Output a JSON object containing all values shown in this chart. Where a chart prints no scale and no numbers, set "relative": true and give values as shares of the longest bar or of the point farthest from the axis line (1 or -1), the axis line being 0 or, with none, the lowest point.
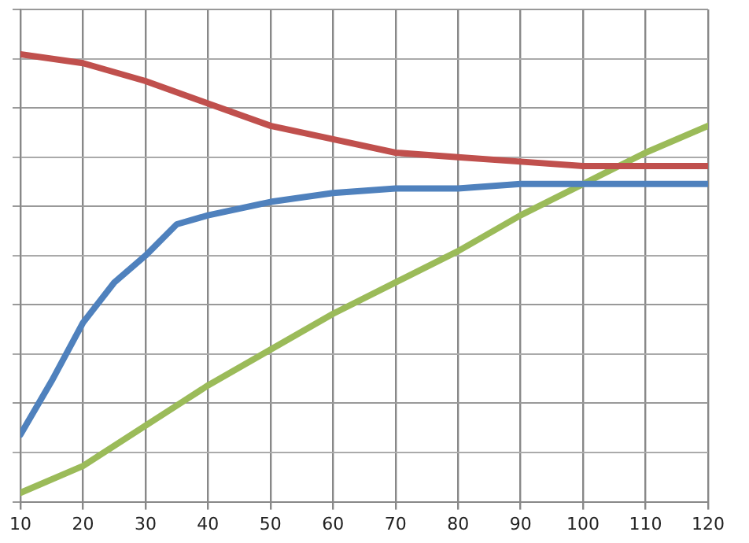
{
  "chart_data": {
    "type": "line",
    "relative": true,
    "x": [
      10,
      20,
      30,
      40,
      50,
      60,
      70,
      80,
      90,
      100,
      110,
      120
    ],
    "xlim": [
      10,
      120
    ],
    "xticks": [
      10,
      20,
      30,
      40,
      50,
      60,
      70,
      80,
      90,
      100,
      110,
      120
    ],
    "grid": true,
    "legend": false,
    "marker": "none",
    "line_style": "solid",
    "series": [
      {
        "color": "#c0504d",
        "values": [
          1,
          0.98,
          0.94,
          0.89,
          0.84,
          0.81,
          0.78,
          0.77,
          0.76,
          0.75,
          0.75,
          0.75
        ]
      },
      {
        "color": "#4f81bd",
        "x": [
          10,
          15,
          20,
          25,
          30,
          35,
          40,
          50,
          60,
          70,
          80,
          90,
          100,
          120
        ],
        "values": [
          0.15,
          0.27,
          0.4,
          0.49,
          0.55,
          0.62,
          0.64,
          0.67,
          0.69,
          0.7,
          0.7,
          0.71,
          0.71,
          0.71
        ]
      },
      {
        "color": "#9bbb59",
        "values": [
          0.02,
          0.08,
          0.17,
          0.26,
          0.34,
          0.42,
          0.49,
          0.56,
          0.64,
          0.71,
          0.78,
          0.84
        ]
      }
    ]
  }
}
